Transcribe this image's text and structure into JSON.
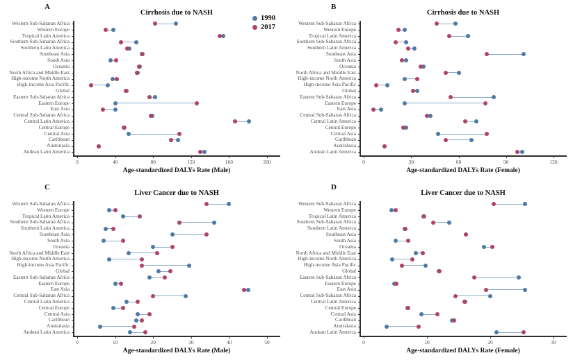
{
  "colors": {
    "series_1990": "#4b7aa6",
    "series_2017": "#b04263",
    "connector": "#8aabcd",
    "axis": "#2e2e2e",
    "label_text": "#4d4d4d"
  },
  "legend": {
    "position": "top-right-panel-A",
    "items": [
      {
        "label": "1990",
        "color": "#4b7aa6"
      },
      {
        "label": "2017",
        "color": "#b04263"
      }
    ]
  },
  "categories": [
    "Western Sub-Saharan Africa",
    "Western Europe",
    "Tropical Latin America",
    "Southern Sub-Saharan Africa",
    "Southern Latin America",
    "Southeast Asia",
    "South Asia",
    "Oceania",
    "North Africa and Middle East",
    "High-income North America",
    "High-income Asia Pacific",
    "Global",
    "Eastern Sub-Saharan Africa",
    "Eastern Europe",
    "East Asia",
    "Central Sub-Saharan Africa",
    "Central Latin America",
    "Central Europe",
    "Central Asia",
    "Caribbean",
    "Australasia",
    "Andean Latin America"
  ],
  "chart_data": [
    {
      "type": "dumbbell-dot",
      "panel": "A",
      "title": "Cirrhosis due to NASH",
      "xlabel": "Age-standardized DALYs Rate (Male)",
      "xlim": [
        0,
        200
      ],
      "ticks": [
        0,
        40,
        80,
        120,
        160,
        200
      ],
      "grid": false,
      "series": [
        {
          "name": "1990",
          "values": [
            104,
            38,
            154,
            62,
            55,
            68,
            35,
            66,
            64,
            37,
            32,
            52,
            82,
            40,
            40,
            79,
            181,
            50,
            54,
            106,
            23,
            134
          ]
        },
        {
          "name": "2017",
          "values": [
            82,
            30,
            150,
            46,
            53,
            69,
            41,
            65,
            63,
            42,
            15,
            51,
            76,
            126,
            27,
            78,
            166,
            49,
            108,
            99,
            23,
            130
          ]
        }
      ]
    },
    {
      "type": "dumbbell-dot",
      "panel": "B",
      "title": "Cirrhosis due to NASH",
      "xlabel": "Age-standardized DALYs Rate (Female)",
      "xlim": [
        0,
        120
      ],
      "ticks": [
        0,
        30,
        60,
        90,
        120
      ],
      "grid": false,
      "series": [
        {
          "name": "1990",
          "values": [
            58,
            26,
            66,
            27,
            32,
            101,
            27,
            38,
            60,
            26,
            15,
            34,
            82,
            26,
            11,
            42,
            71,
            27,
            47,
            68,
            13,
            100
          ]
        },
        {
          "name": "2017",
          "values": [
            46,
            22,
            54,
            20,
            28,
            78,
            24,
            36,
            52,
            34,
            8,
            31,
            55,
            77,
            6,
            40,
            64,
            25,
            78,
            52,
            13,
            97
          ]
        }
      ]
    },
    {
      "type": "dumbbell-dot",
      "panel": "C",
      "title": "Liver Cancer due to NASH",
      "xlabel": "Age-standardized DALYs Rate (Male)",
      "xlim": [
        0,
        50
      ],
      "ticks": [
        0,
        10,
        20,
        30,
        40,
        50
      ],
      "grid": false,
      "series": [
        {
          "name": "1990",
          "values": [
            40,
            8.5,
            12,
            36,
            7.5,
            25,
            7,
            20,
            13.5,
            8.5,
            29.5,
            21.5,
            19,
            10,
            45,
            28.5,
            13,
            9.5,
            16,
            15.5,
            6,
            14
          ]
        },
        {
          "name": "2017",
          "values": [
            34,
            10,
            16.5,
            27,
            9.5,
            34,
            12,
            25,
            21,
            17,
            17,
            24.5,
            23,
            11.5,
            44,
            20,
            16,
            12,
            19,
            17,
            15,
            18
          ]
        }
      ]
    },
    {
      "type": "dumbbell-dot",
      "panel": "D",
      "title": "Liver Cancer due to NASH",
      "xlabel": "Age-standardized DALYs Rate (Female)",
      "xlim": [
        0,
        30
      ],
      "ticks": [
        0,
        10,
        20,
        30
      ],
      "grid": false,
      "series": [
        {
          "name": "1990",
          "values": [
            25.5,
            4.4,
            9.6,
            13.5,
            6.5,
            16.2,
            5,
            19,
            8.2,
            4.5,
            9.8,
            11.9,
            24.5,
            4.8,
            25.5,
            20,
            16,
            6.9,
            9.1,
            14,
            3.6,
            21
          ]
        },
        {
          "name": "2017",
          "values": [
            20.5,
            5,
            9.4,
            11,
            6.6,
            16.1,
            7,
            20.3,
            9.3,
            7.7,
            6,
            12,
            17.5,
            5.2,
            19.3,
            14.5,
            15.9,
            7,
            11.7,
            14.3,
            8.7,
            25.3
          ]
        }
      ]
    }
  ]
}
